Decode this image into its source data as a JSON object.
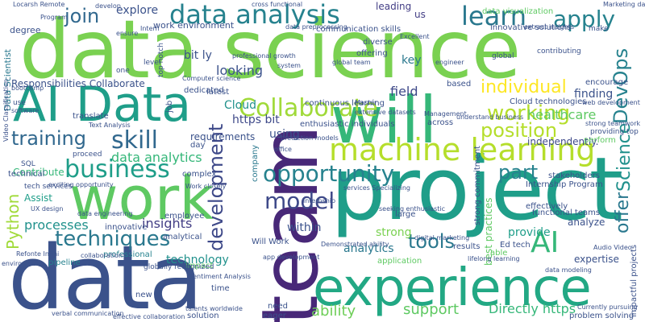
{
  "background": "#ffffff",
  "words": [
    {
      "text": "data science",
      "color": "#7ad151"
    },
    {
      "text": "data",
      "color": "#3b528b"
    },
    {
      "text": "project",
      "color": "#1f9e89"
    },
    {
      "text": "team",
      "color": "#482878"
    },
    {
      "text": "work",
      "color": "#5ec962"
    },
    {
      "text": "experience",
      "color": "#22a884"
    },
    {
      "text": "will",
      "color": "#35b779"
    },
    {
      "text": "AI Data",
      "color": "#1f9e89"
    },
    {
      "text": "machine learning",
      "color": "#b5de2b"
    },
    {
      "text": "data analysis",
      "color": "#26828e"
    },
    {
      "text": "learn",
      "color": "#2a788e"
    },
    {
      "text": "apply",
      "color": "#26828e"
    },
    {
      "text": "Collaborate",
      "color": "#a0da39"
    },
    {
      "text": "skill",
      "color": "#31688e"
    },
    {
      "text": "business",
      "color": "#1f9e89"
    },
    {
      "text": "opportunity",
      "color": "#26828e"
    },
    {
      "text": "techniques",
      "color": "#2a788e"
    },
    {
      "text": "development",
      "color": "#3e4989"
    },
    {
      "text": "model",
      "color": "#3e4989"
    },
    {
      "text": "AI",
      "color": "#35b779"
    },
    {
      "text": "tools",
      "color": "#2a788e"
    },
    {
      "text": "working",
      "color": "#b5de2b"
    },
    {
      "text": "position",
      "color": "#b5de2b"
    },
    {
      "text": "individual",
      "color": "#fde725"
    },
    {
      "text": "training",
      "color": "#31688e"
    },
    {
      "text": "Python",
      "color": "#a0da39"
    },
    {
      "text": "DevOps",
      "color": "#26828e"
    },
    {
      "text": "Science",
      "color": "#21918c"
    },
    {
      "text": "offer",
      "color": "#2a788e"
    },
    {
      "text": "join",
      "color": "#31688e"
    },
    {
      "text": "explore",
      "color": "#3b528b"
    },
    {
      "text": "insights",
      "color": "#433e85"
    },
    {
      "text": "analytics",
      "color": "#2a788e"
    },
    {
      "text": "part",
      "color": "#26828e"
    },
    {
      "text": "healthcare",
      "color": "#5ec962"
    },
    {
      "text": "data analytics",
      "color": "#35b779"
    },
    {
      "text": "processes",
      "color": "#21918c"
    },
    {
      "text": "technology",
      "color": "#21918c"
    },
    {
      "text": "ability",
      "color": "#6ece58"
    },
    {
      "text": "support",
      "color": "#5ec962"
    },
    {
      "text": "Directly https",
      "color": "#35b779"
    },
    {
      "text": "https bit",
      "color": "#3e4989"
    },
    {
      "text": "bit ly",
      "color": "#3b528b"
    },
    {
      "text": "looking",
      "color": "#3b528b"
    },
    {
      "text": "field",
      "color": "#3e4989"
    },
    {
      "text": "finding",
      "color": "#3b528b"
    },
    {
      "text": "key",
      "color": "#2a788e"
    },
    {
      "text": "using",
      "color": "#3b528b"
    },
    {
      "text": "within",
      "color": "#3b528b"
    },
    {
      "text": "strong",
      "color": "#7ad151"
    },
    {
      "text": "provide",
      "color": "#1f9e89"
    },
    {
      "text": "analyze",
      "color": "#3b528b"
    },
    {
      "text": "expertise",
      "color": "#3b528b"
    },
    {
      "text": "independently.",
      "color": "#3e4989"
    },
    {
      "text": "Contribute",
      "color": "#35b779"
    },
    {
      "text": "Assist",
      "color": "#1f9e89"
    },
    {
      "text": "Cloud",
      "color": "#21918c"
    },
    {
      "text": "requirements",
      "color": "#3b528b"
    },
    {
      "text": "Responsibilities Collaborate",
      "color": "#3b528b"
    },
    {
      "text": "work environment",
      "color": "#3b528b"
    },
    {
      "text": "leading",
      "color": "#433e85"
    },
    {
      "text": "us",
      "color": "#433e85"
    },
    {
      "text": "best practices",
      "color": "#5ec962"
    },
    {
      "text": "Data Scientist",
      "color": "#2a788e"
    },
    {
      "text": "degree",
      "color": "#3b528b"
    },
    {
      "text": "professional",
      "color": "#26828e"
    },
    {
      "text": "pipeline",
      "color": "#26828e"
    },
    {
      "text": "company",
      "color": "#2a788e"
    },
    {
      "text": "new",
      "color": "#3b528b"
    },
    {
      "text": "need",
      "color": "#3b528b"
    },
    {
      "text": "eager",
      "color": "#3b528b"
    },
    {
      "text": "solution",
      "color": "#3b528b"
    },
    {
      "text": "time",
      "color": "#3b528b"
    },
    {
      "text": "impact",
      "color": "#5ec962"
    },
    {
      "text": "application",
      "color": "#5ec962"
    },
    {
      "text": "results",
      "color": "#3b528b"
    },
    {
      "text": "able",
      "color": "#5ec962"
    },
    {
      "text": "innovative solutions",
      "color": "#3b528b"
    },
    {
      "text": "communication skills",
      "color": "#3b528b"
    },
    {
      "text": "data visualization",
      "color": "#5ec962"
    },
    {
      "text": "continuous learning",
      "color": "#3b528b"
    },
    {
      "text": "Cloud technologies",
      "color": "#3b528b"
    },
    {
      "text": "day",
      "color": "#3b528b"
    },
    {
      "text": "complex",
      "color": "#3b528b"
    },
    {
      "text": "enthusiastic individuals",
      "color": "#3b528b"
    },
    {
      "text": "Internship Program",
      "color": "#3b528b"
    },
    {
      "text": "stakeholders",
      "color": "#3b528b"
    },
    {
      "text": "functional teams",
      "color": "#3b528b"
    },
    {
      "text": "Will Work",
      "color": "#3b528b"
    },
    {
      "text": "translate",
      "color": "#3b528b"
    },
    {
      "text": "job",
      "color": "#3b528b"
    },
    {
      "text": "dedicated",
      "color": "#3b528b"
    },
    {
      "text": "latest",
      "color": "#3b528b"
    },
    {
      "text": "diverse",
      "color": "#3b528b"
    },
    {
      "text": "offering",
      "color": "#3b528b"
    },
    {
      "text": "Ed tech",
      "color": "#3b528b"
    },
    {
      "text": "effectively",
      "color": "#3b528b"
    },
    {
      "text": "encourage",
      "color": "#3b528b"
    },
    {
      "text": "perform",
      "color": "#5ec962"
    },
    {
      "text": "large",
      "color": "#3b528b"
    },
    {
      "text": "based",
      "color": "#3b528b"
    },
    {
      "text": "across",
      "color": "#3b528b"
    },
    {
      "text": "employee",
      "color": "#3b528b"
    },
    {
      "text": "innovative",
      "color": "#3b528b"
    },
    {
      "text": "analytical",
      "color": "#3b528b"
    },
    {
      "text": "technical",
      "color": "#3b528b"
    },
    {
      "text": "SQL",
      "color": "#3b528b"
    },
    {
      "text": "tech services",
      "color": "#3b528b"
    },
    {
      "text": "proceed",
      "color": "#3b528b"
    },
    {
      "text": "make",
      "color": "#3b528b"
    },
    {
      "text": "global",
      "color": "#3b528b"
    },
    {
      "text": "contributing",
      "color": "#3b528b"
    },
    {
      "text": "use",
      "color": "#3b528b"
    },
    {
      "text": "one",
      "color": "#3b528b"
    },
    {
      "text": "level",
      "color": "#3b528b"
    },
    {
      "text": "top notch",
      "color": "#3b528b"
    },
    {
      "text": "strong commitment",
      "color": "#3b528b"
    },
    {
      "text": "impactful projects",
      "color": "#3b528b"
    },
    {
      "text": "providing top",
      "color": "#3b528b"
    },
    {
      "text": "Marketing data",
      "color": "#3b528b"
    },
    {
      "text": "problem solving",
      "color": "#3b528b"
    },
    {
      "text": "Program",
      "color": "#3b528b"
    },
    {
      "text": "ensure",
      "color": "#3b528b"
    },
    {
      "text": "professional growth",
      "color": "#3b528b"
    },
    {
      "text": "cross functional",
      "color": "#3b528b"
    },
    {
      "text": "Computer science",
      "color": "#3b528b"
    },
    {
      "text": "engineer",
      "color": "#3b528b"
    },
    {
      "text": "Excellent",
      "color": "#3b528b"
    },
    {
      "text": "extract insights",
      "color": "#3b528b"
    },
    {
      "text": "data preprocessing",
      "color": "#3b528b"
    },
    {
      "text": "system",
      "color": "#3b528b"
    },
    {
      "text": "Intern",
      "color": "#3b528b"
    },
    {
      "text": "global team",
      "color": "#3b528b"
    },
    {
      "text": "bootcamp",
      "color": "#3b528b"
    },
    {
      "text": "software",
      "color": "#3b528b"
    },
    {
      "text": "web development",
      "color": "#3b528b"
    },
    {
      "text": "Management",
      "color": "#3b528b"
    },
    {
      "text": "Master",
      "color": "#3b528b"
    },
    {
      "text": "develop",
      "color": "#3b528b"
    },
    {
      "text": "Locarsh Remote",
      "color": "#3b528b"
    },
    {
      "text": "Text Analysis",
      "color": "#3b528b"
    },
    {
      "text": "UX design",
      "color": "#3b528b"
    },
    {
      "text": "Work closely",
      "color": "#3b528b"
    },
    {
      "text": "prediction models",
      "color": "#3b528b"
    },
    {
      "text": "Audio Video",
      "color": "#3b528b"
    },
    {
      "text": "internship",
      "color": "#3b528b"
    },
    {
      "text": "digital marketing",
      "color": "#3b528b"
    },
    {
      "text": "app development",
      "color": "#3b528b"
    },
    {
      "text": "Sentiment Analysis",
      "color": "#3b528b"
    },
    {
      "text": "collaboration",
      "color": "#3b528b"
    },
    {
      "text": "Demonstrated ability",
      "color": "#3b528b"
    },
    {
      "text": "globally recognized",
      "color": "#3b528b"
    },
    {
      "text": "verbal communication",
      "color": "#3b528b"
    },
    {
      "text": "effective collaboration",
      "color": "#3b528b"
    },
    {
      "text": "talents worldwide",
      "color": "#3b528b"
    },
    {
      "text": "Currently pursuing",
      "color": "#3b528b"
    },
    {
      "text": "exciting opportunity",
      "color": "#3b528b"
    },
    {
      "text": "extensive datasets",
      "color": "#3b528b"
    },
    {
      "text": "strong teamwork",
      "color": "#3b528b"
    },
    {
      "text": "services Specializing",
      "color": "#3b528b"
    },
    {
      "text": "seeking enthusiastic",
      "color": "#3b528b"
    },
    {
      "text": "office",
      "color": "#3b528b"
    },
    {
      "text": "environment",
      "color": "#3b528b"
    },
    {
      "text": "Refonte Infini",
      "color": "#3b528b"
    },
    {
      "text": "data engineering",
      "color": "#3b528b"
    },
    {
      "text": "lifelong learning",
      "color": "#3b528b"
    },
    {
      "text": "Video Classification",
      "color": "#3b528b"
    },
    {
      "text": "understand business",
      "color": "#3b528b"
    },
    {
      "text": "data modeling",
      "color": "#3b528b"
    }
  ]
}
